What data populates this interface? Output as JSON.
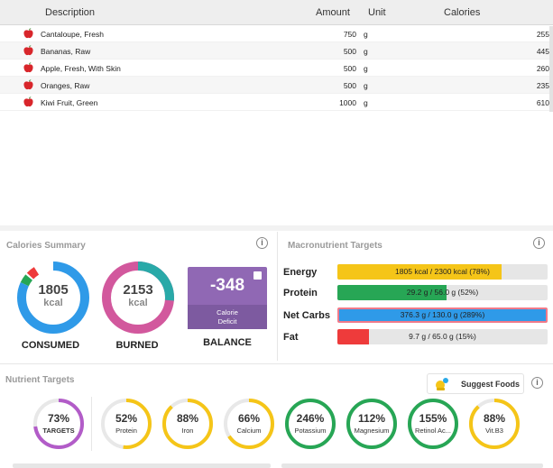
{
  "table": {
    "headers": {
      "description": "Description",
      "amount": "Amount",
      "unit": "Unit",
      "calories": "Calories"
    },
    "rows": [
      {
        "description": "Cantaloupe, Fresh",
        "amount": "750",
        "unit": "g",
        "calories": "255"
      },
      {
        "description": "Bananas, Raw",
        "amount": "500",
        "unit": "g",
        "calories": "445"
      },
      {
        "description": "Apple, Fresh, With Skin",
        "amount": "500",
        "unit": "g",
        "calories": "260"
      },
      {
        "description": "Oranges, Raw",
        "amount": "500",
        "unit": "g",
        "calories": "235"
      },
      {
        "description": "Kiwi Fruit, Green",
        "amount": "1000",
        "unit": "g",
        "calories": "610"
      }
    ]
  },
  "calories_summary": {
    "title": "Calories Summary",
    "consumed": {
      "value": "1805",
      "unit": "kcal",
      "label": "CONSUMED"
    },
    "burned": {
      "value": "2153",
      "unit": "kcal",
      "label": "BURNED"
    },
    "balance": {
      "value": "-348",
      "caption_line1": "Calorie",
      "caption_line2": "Deficit",
      "label": "BALANCE"
    }
  },
  "macros": {
    "title": "Macronutrient Targets",
    "items": [
      {
        "name": "Energy",
        "text": "1805 kcal / 2300 kcal (78%)",
        "fraction": 0.78,
        "color": "#f5c518"
      },
      {
        "name": "Protein",
        "text": "29.2 g / 56.0 g (52%)",
        "fraction": 0.52,
        "color": "#27a655"
      },
      {
        "name": "Net Carbs",
        "text": "376.3 g / 130.0 g (289%)",
        "fraction": 1.0,
        "color": "#2f9ae8"
      },
      {
        "name": "Fat",
        "text": "9.7 g / 65.0 g (15%)",
        "fraction": 0.15,
        "color": "#ee3b3b"
      }
    ]
  },
  "nutrients": {
    "title": "Nutrient Targets",
    "suggest_label": "Suggest Foods",
    "overall": {
      "pct": "73%",
      "name": "TARGETS",
      "fraction": 0.73,
      "color": "#b25cc8"
    },
    "items": [
      {
        "pct": "52%",
        "name": "Protein",
        "fraction": 0.52,
        "color": "#f5c518"
      },
      {
        "pct": "88%",
        "name": "Iron",
        "fraction": 0.88,
        "color": "#f5c518"
      },
      {
        "pct": "66%",
        "name": "Calcium",
        "fraction": 0.66,
        "color": "#f5c518"
      },
      {
        "pct": "246%",
        "name": "Potassium",
        "fraction": 1.0,
        "color": "#27a655"
      },
      {
        "pct": "112%",
        "name": "Magnesium",
        "fraction": 1.0,
        "color": "#27a655"
      },
      {
        "pct": "155%",
        "name": "Retinol Ac...",
        "fraction": 1.0,
        "color": "#27a655"
      },
      {
        "pct": "88%",
        "name": "Vit.B3",
        "fraction": 0.88,
        "color": "#f5c518"
      }
    ]
  }
}
